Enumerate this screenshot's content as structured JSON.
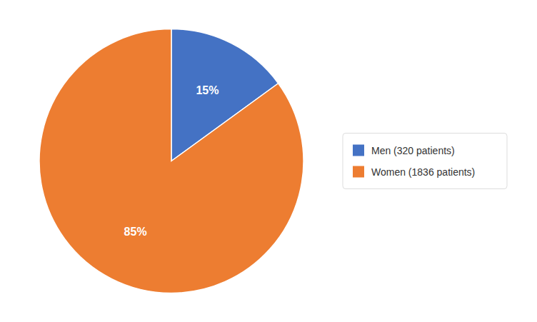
{
  "chart_data": {
    "type": "pie",
    "categories": [
      "Men (320 patients)",
      "Women (1836 patients)"
    ],
    "values": [
      15,
      85
    ],
    "value_labels": [
      "15%",
      "85%"
    ],
    "colors": [
      "#4472C4",
      "#ED7D31"
    ],
    "data_labels": true,
    "legend": "right"
  }
}
